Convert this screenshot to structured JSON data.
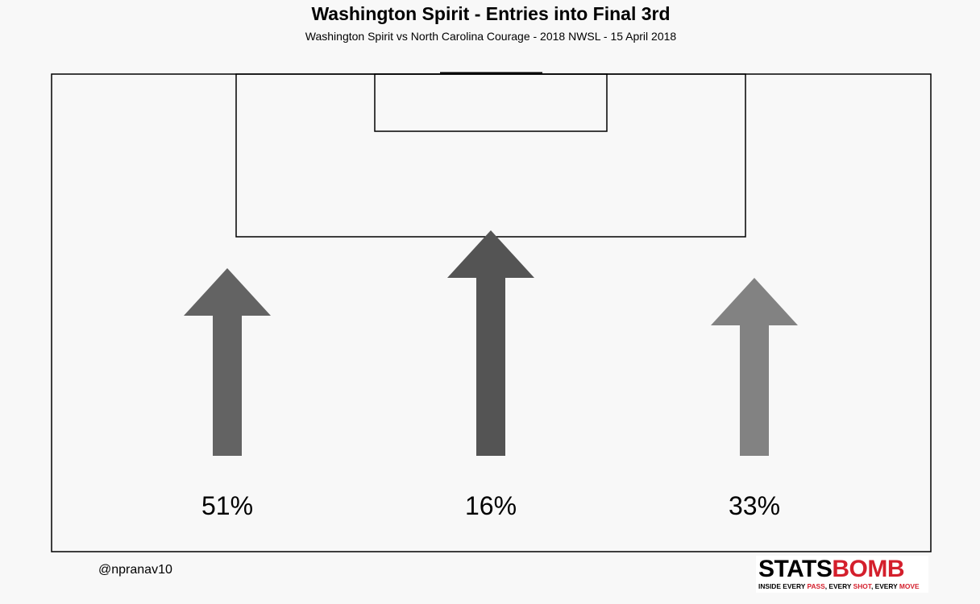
{
  "chart_data": {
    "type": "bar",
    "title": "Washington Spirit - Entries into Final 3rd",
    "subtitle": "Washington Spirit vs North Carolina Courage  -  2018 NWSL  -  15 April 2018",
    "categories": [
      "Left",
      "Centre",
      "Right"
    ],
    "values": [
      51,
      16,
      33
    ],
    "value_labels": [
      "51%",
      "16%",
      "33%"
    ],
    "arrow_colors": [
      "#636363",
      "#545454",
      "#828282"
    ]
  },
  "author": "@npranav10",
  "logo": {
    "word_part1": "STATS",
    "word_part2": "BOMB",
    "tagline": {
      "t1": "INSIDE EVERY ",
      "r1": "PASS",
      "t2": ", EVERY ",
      "r2": "SHOT",
      "t3": ", EVERY ",
      "r3": "MOVE"
    }
  }
}
